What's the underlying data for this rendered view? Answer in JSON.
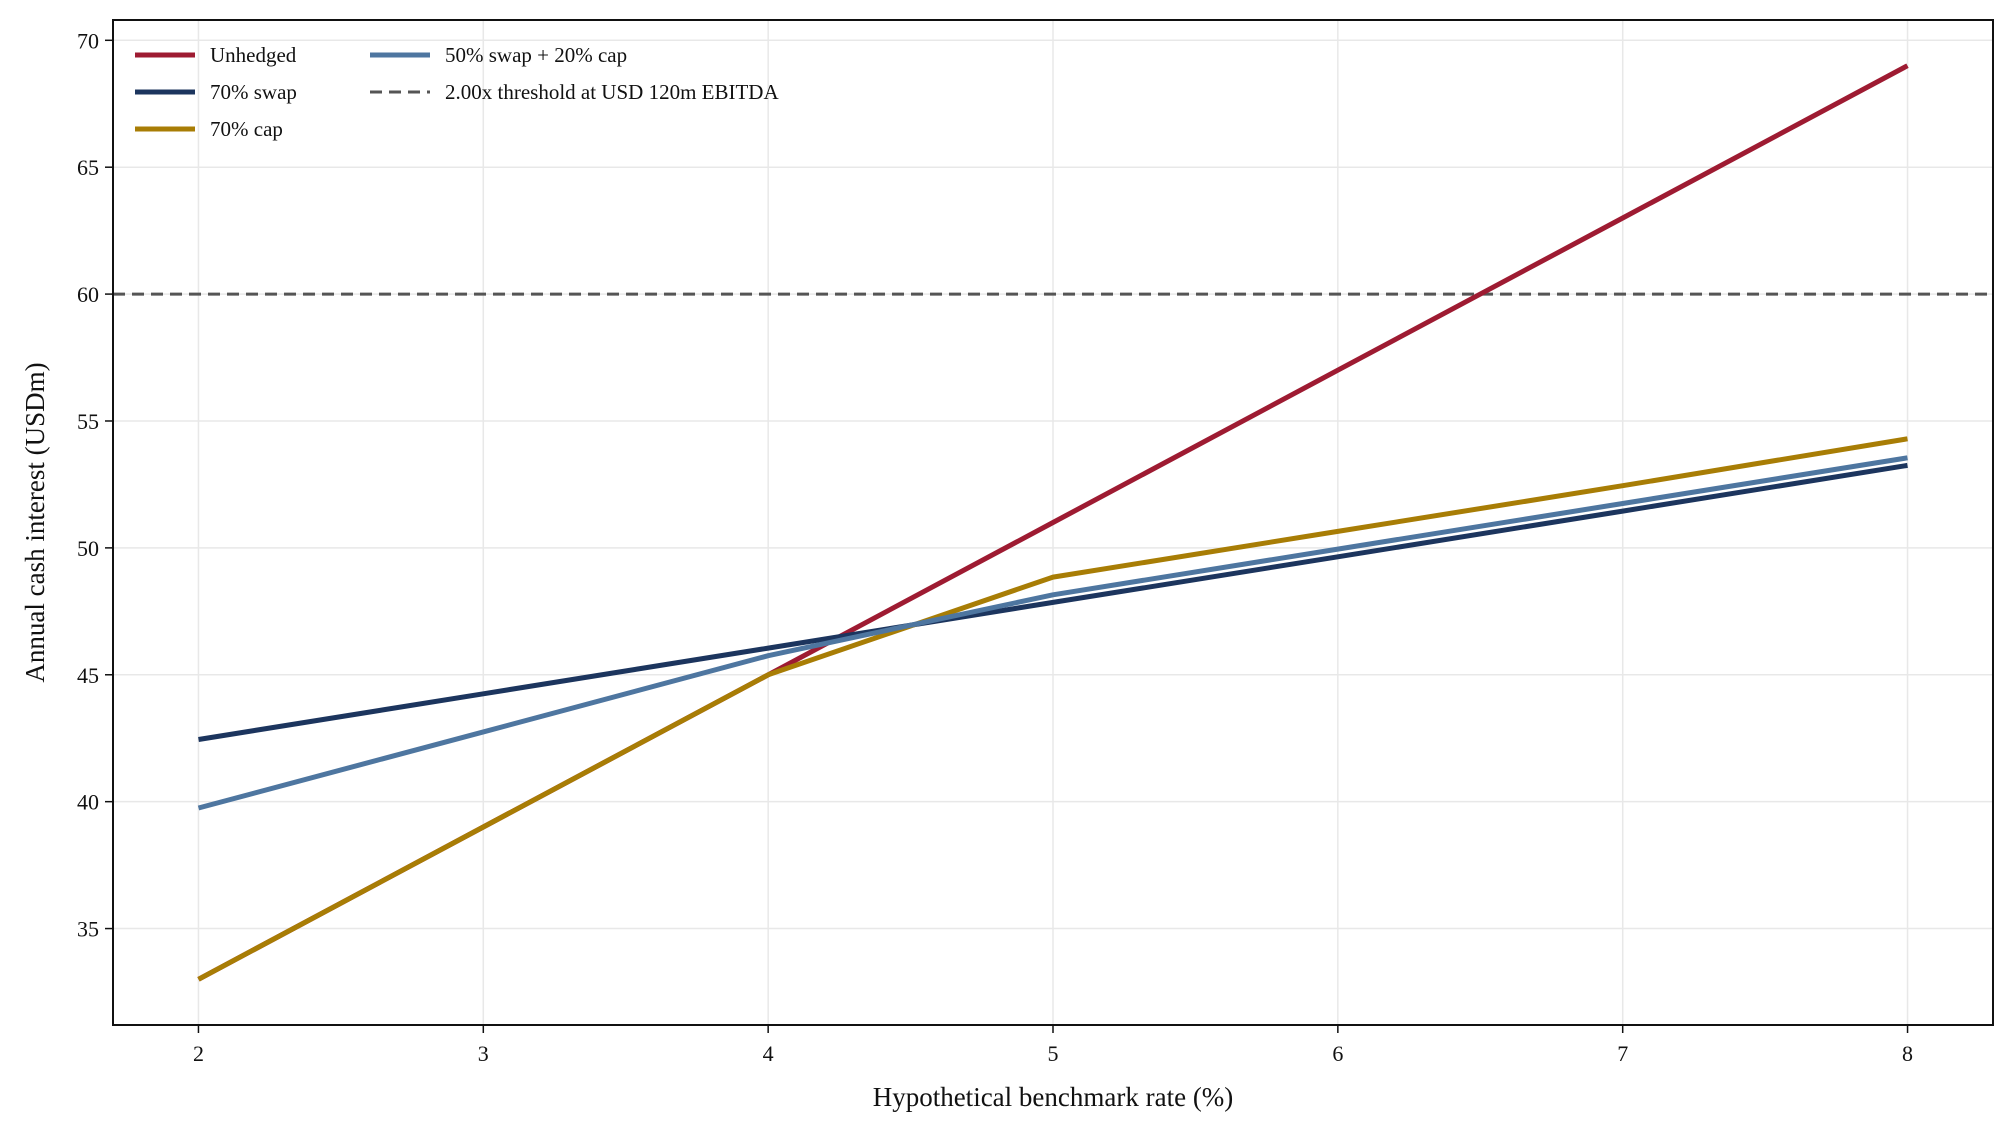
{
  "chart_data": {
    "type": "line",
    "title": "",
    "xlabel": "Hypothetical benchmark rate (%)",
    "ylabel": "Annual cash interest (USDm)",
    "x": [
      2,
      3,
      4,
      5,
      6,
      7,
      8
    ],
    "xlim": [
      1.7,
      8.3
    ],
    "ylim": [
      31.2,
      70.8
    ],
    "xticks": [
      2,
      3,
      4,
      5,
      6,
      7,
      8
    ],
    "yticks": [
      35,
      40,
      45,
      50,
      55,
      60,
      65,
      70
    ],
    "grid": true,
    "legend_placement": "top-left",
    "series": [
      {
        "name": "Unhedged",
        "color": "#9e1b32",
        "values": [
          33.0,
          39.0,
          45.0,
          51.0,
          57.0,
          63.0,
          69.0
        ]
      },
      {
        "name": "70% swap",
        "color": "#1c355e",
        "values": [
          42.45,
          44.25,
          46.05,
          47.85,
          49.65,
          51.45,
          53.25
        ]
      },
      {
        "name": "70% cap",
        "color": "#a87d05",
        "values": [
          33.0,
          39.0,
          45.0,
          48.85,
          50.65,
          52.45,
          54.3
        ]
      },
      {
        "name": "50% swap + 20% cap",
        "color": "#4e76a0",
        "values": [
          39.75,
          42.75,
          45.75,
          48.15,
          49.95,
          51.75,
          53.55
        ]
      }
    ],
    "threshold": {
      "name": "2.00x threshold at USD 120m EBITDA",
      "value": 60,
      "color": "#555555",
      "style": "dashed"
    }
  }
}
